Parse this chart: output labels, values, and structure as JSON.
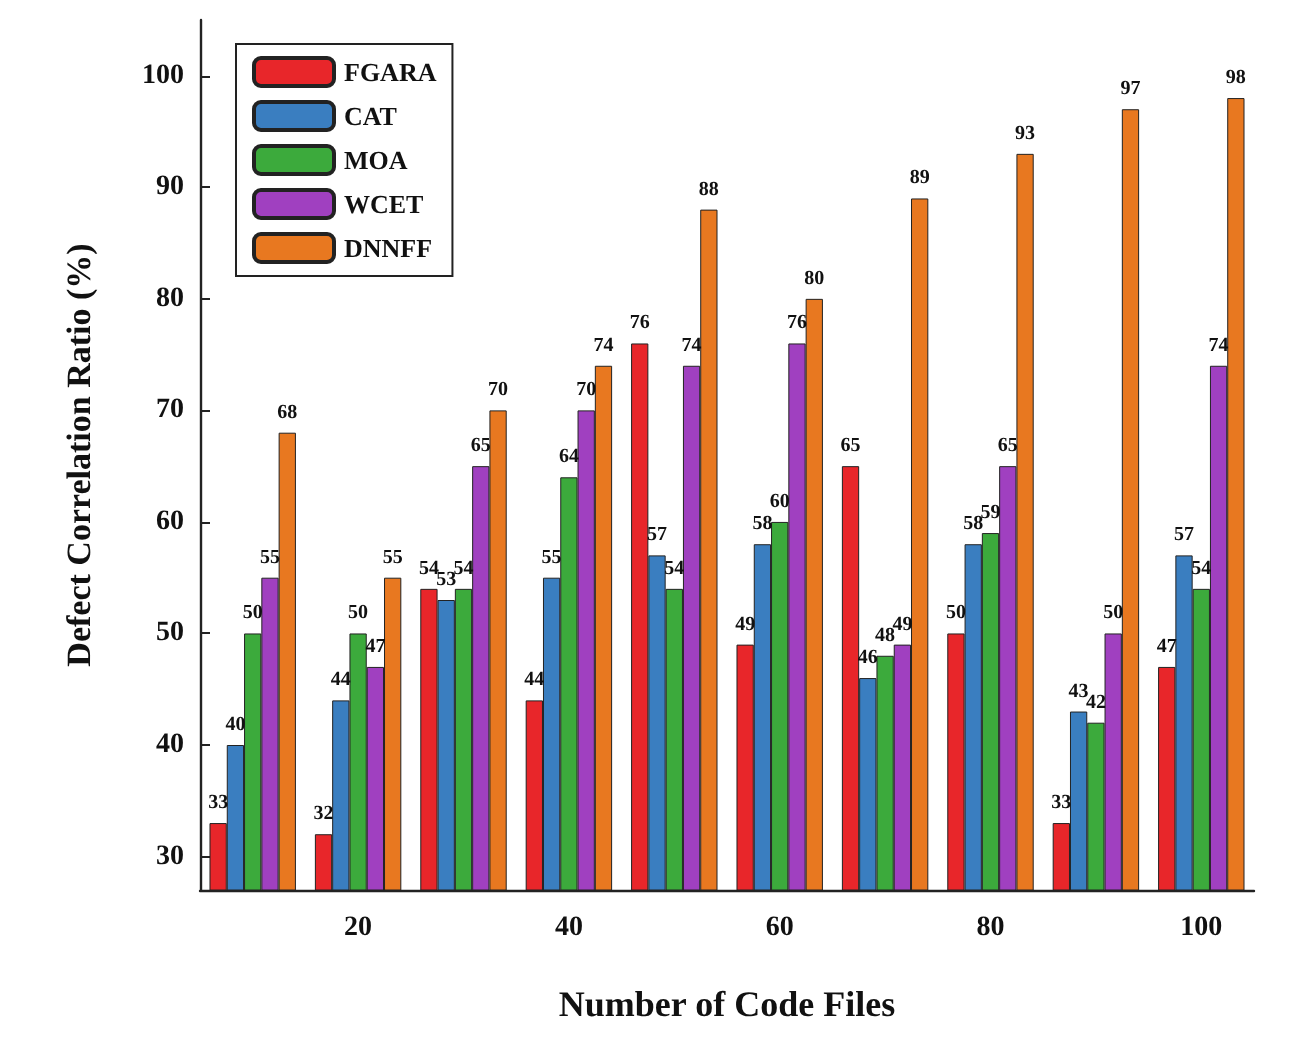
{
  "chart_data": {
    "type": "bar",
    "xlabel": "Number of Code Files",
    "ylabel": "Defect Correlation Ratio (%)",
    "categories": [
      null,
      "20",
      null,
      "40",
      null,
      "60",
      null,
      "80",
      null,
      "100"
    ],
    "series": [
      {
        "name": "FGARA",
        "color": "#e8262a",
        "values": [
          33,
          32,
          54,
          44,
          76,
          49,
          65,
          50,
          33,
          47
        ]
      },
      {
        "name": "CAT",
        "color": "#3a7ec0",
        "values": [
          40,
          44,
          53,
          55,
          57,
          58,
          46,
          58,
          43,
          57
        ]
      },
      {
        "name": "MOA",
        "color": "#3caa3c",
        "values": [
          50,
          50,
          54,
          64,
          54,
          60,
          48,
          59,
          42,
          54
        ]
      },
      {
        "name": "WCET",
        "color": "#a040c0",
        "values": [
          55,
          47,
          65,
          70,
          74,
          76,
          49,
          65,
          50,
          74
        ]
      },
      {
        "name": "DNNFF",
        "color": "#e87820",
        "values": [
          68,
          55,
          70,
          74,
          88,
          80,
          89,
          93,
          97,
          98
        ]
      }
    ],
    "ylim": [
      27,
      105
    ],
    "yticks": [
      30,
      40,
      50,
      60,
      70,
      80,
      90,
      100
    ],
    "data_labels": true,
    "legend": "top left",
    "grid": false
  }
}
